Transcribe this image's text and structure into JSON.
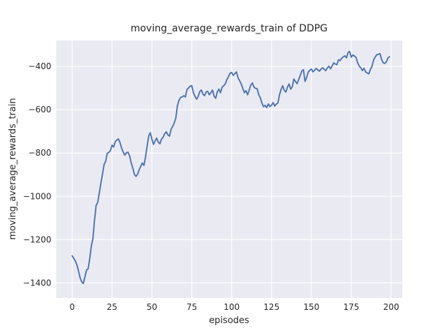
{
  "figure": {
    "title": "moving_average_rewards_train of DDPG",
    "xlabel": "episodes",
    "ylabel": "moving_average_rewards_train"
  },
  "chart_data": {
    "type": "line",
    "title": "moving_average_rewards_train of DDPG",
    "xlabel": "episodes",
    "ylabel": "moving_average_rewards_train",
    "style": "seaborn-darkgrid",
    "grid": true,
    "legend": "none",
    "x_ticks": [
      0,
      25,
      50,
      75,
      100,
      125,
      150,
      175,
      200
    ],
    "y_ticks": [
      -400,
      -600,
      -800,
      -1000,
      -1200,
      -1400
    ],
    "xlim": [
      -10,
      207
    ],
    "ylim": [
      -1470,
      -280
    ],
    "colors": {
      "line": "#4c72b0",
      "axes_background": "#eaeaf2",
      "grid": "#ffffff",
      "text": "#262626",
      "figure_background": "#ffffff"
    },
    "series": [
      {
        "name": "moving_average_rewards_train",
        "points": [
          [
            0,
            -1275
          ],
          [
            1,
            -1287
          ],
          [
            2,
            -1299
          ],
          [
            3,
            -1318
          ],
          [
            4,
            -1346
          ],
          [
            5,
            -1377
          ],
          [
            6,
            -1396
          ],
          [
            7,
            -1403
          ],
          [
            8,
            -1372
          ],
          [
            9,
            -1341
          ],
          [
            10,
            -1335
          ],
          [
            11,
            -1289
          ],
          [
            12,
            -1230
          ],
          [
            13,
            -1196
          ],
          [
            14,
            -1112
          ],
          [
            15,
            -1043
          ],
          [
            16,
            -1028
          ],
          [
            17,
            -986
          ],
          [
            18,
            -939
          ],
          [
            19,
            -898
          ],
          [
            20,
            -853
          ],
          [
            21,
            -838
          ],
          [
            22,
            -801
          ],
          [
            23,
            -797
          ],
          [
            24,
            -789
          ],
          [
            25,
            -764
          ],
          [
            26,
            -772
          ],
          [
            27,
            -748
          ],
          [
            28,
            -740
          ],
          [
            29,
            -735
          ],
          [
            30,
            -752
          ],
          [
            31,
            -778
          ],
          [
            32,
            -796
          ],
          [
            33,
            -810
          ],
          [
            34,
            -799
          ],
          [
            35,
            -796
          ],
          [
            36,
            -813
          ],
          [
            37,
            -845
          ],
          [
            38,
            -869
          ],
          [
            39,
            -898
          ],
          [
            40,
            -908
          ],
          [
            41,
            -899
          ],
          [
            42,
            -878
          ],
          [
            43,
            -861
          ],
          [
            44,
            -846
          ],
          [
            45,
            -857
          ],
          [
            46,
            -818
          ],
          [
            47,
            -768
          ],
          [
            48,
            -721
          ],
          [
            49,
            -706
          ],
          [
            50,
            -736
          ],
          [
            51,
            -760
          ],
          [
            52,
            -744
          ],
          [
            53,
            -731
          ],
          [
            54,
            -750
          ],
          [
            55,
            -757
          ],
          [
            56,
            -736
          ],
          [
            57,
            -727
          ],
          [
            58,
            -711
          ],
          [
            59,
            -702
          ],
          [
            60,
            -716
          ],
          [
            61,
            -722
          ],
          [
            62,
            -691
          ],
          [
            63,
            -677
          ],
          [
            64,
            -661
          ],
          [
            65,
            -638
          ],
          [
            66,
            -581
          ],
          [
            67,
            -556
          ],
          [
            68,
            -543
          ],
          [
            69,
            -541
          ],
          [
            70,
            -535
          ],
          [
            71,
            -541
          ],
          [
            72,
            -506
          ],
          [
            73,
            -499
          ],
          [
            74,
            -491
          ],
          [
            75,
            -489
          ],
          [
            76,
            -521
          ],
          [
            77,
            -538
          ],
          [
            78,
            -551
          ],
          [
            79,
            -539
          ],
          [
            80,
            -516
          ],
          [
            81,
            -509
          ],
          [
            82,
            -528
          ],
          [
            83,
            -535
          ],
          [
            84,
            -518
          ],
          [
            85,
            -515
          ],
          [
            86,
            -531
          ],
          [
            87,
            -521
          ],
          [
            88,
            -509
          ],
          [
            89,
            -538
          ],
          [
            90,
            -547
          ],
          [
            91,
            -517
          ],
          [
            92,
            -505
          ],
          [
            93,
            -521
          ],
          [
            94,
            -496
          ],
          [
            95,
            -489
          ],
          [
            96,
            -481
          ],
          [
            97,
            -461
          ],
          [
            98,
            -447
          ],
          [
            99,
            -431
          ],
          [
            100,
            -428
          ],
          [
            101,
            -441
          ],
          [
            102,
            -433
          ],
          [
            103,
            -425
          ],
          [
            104,
            -452
          ],
          [
            105,
            -466
          ],
          [
            106,
            -481
          ],
          [
            107,
            -502
          ],
          [
            108,
            -521
          ],
          [
            109,
            -512
          ],
          [
            110,
            -531
          ],
          [
            111,
            -509
          ],
          [
            112,
            -486
          ],
          [
            113,
            -476
          ],
          [
            114,
            -496
          ],
          [
            115,
            -501
          ],
          [
            116,
            -503
          ],
          [
            117,
            -531
          ],
          [
            118,
            -545
          ],
          [
            119,
            -570
          ],
          [
            120,
            -586
          ],
          [
            121,
            -580
          ],
          [
            122,
            -590
          ],
          [
            123,
            -573
          ],
          [
            124,
            -586
          ],
          [
            125,
            -579
          ],
          [
            126,
            -567
          ],
          [
            127,
            -583
          ],
          [
            128,
            -574
          ],
          [
            129,
            -569
          ],
          [
            130,
            -531
          ],
          [
            131,
            -506
          ],
          [
            132,
            -489
          ],
          [
            133,
            -511
          ],
          [
            134,
            -518
          ],
          [
            135,
            -496
          ],
          [
            136,
            -481
          ],
          [
            137,
            -505
          ],
          [
            138,
            -494
          ],
          [
            139,
            -458
          ],
          [
            140,
            -469
          ],
          [
            141,
            -480
          ],
          [
            142,
            -461
          ],
          [
            143,
            -442
          ],
          [
            144,
            -421
          ],
          [
            145,
            -415
          ],
          [
            146,
            -469
          ],
          [
            147,
            -451
          ],
          [
            148,
            -426
          ],
          [
            149,
            -418
          ],
          [
            150,
            -412
          ],
          [
            151,
            -425
          ],
          [
            152,
            -417
          ],
          [
            153,
            -409
          ],
          [
            154,
            -416
          ],
          [
            155,
            -422
          ],
          [
            156,
            -413
          ],
          [
            157,
            -406
          ],
          [
            158,
            -413
          ],
          [
            159,
            -419
          ],
          [
            160,
            -407
          ],
          [
            161,
            -399
          ],
          [
            162,
            -411
          ],
          [
            163,
            -398
          ],
          [
            164,
            -384
          ],
          [
            165,
            -389
          ],
          [
            166,
            -392
          ],
          [
            167,
            -369
          ],
          [
            168,
            -373
          ],
          [
            169,
            -362
          ],
          [
            170,
            -356
          ],
          [
            171,
            -351
          ],
          [
            172,
            -360
          ],
          [
            173,
            -336
          ],
          [
            174,
            -331
          ],
          [
            175,
            -357
          ],
          [
            176,
            -347
          ],
          [
            177,
            -352
          ],
          [
            178,
            -358
          ],
          [
            179,
            -383
          ],
          [
            180,
            -399
          ],
          [
            181,
            -406
          ],
          [
            182,
            -419
          ],
          [
            183,
            -409
          ],
          [
            184,
            -425
          ],
          [
            185,
            -430
          ],
          [
            186,
            -434
          ],
          [
            187,
            -414
          ],
          [
            188,
            -399
          ],
          [
            189,
            -370
          ],
          [
            190,
            -356
          ],
          [
            191,
            -346
          ],
          [
            192,
            -344
          ],
          [
            193,
            -341
          ],
          [
            194,
            -367
          ],
          [
            195,
            -383
          ],
          [
            196,
            -386
          ],
          [
            197,
            -379
          ],
          [
            198,
            -361
          ],
          [
            199,
            -355
          ]
        ]
      }
    ]
  }
}
